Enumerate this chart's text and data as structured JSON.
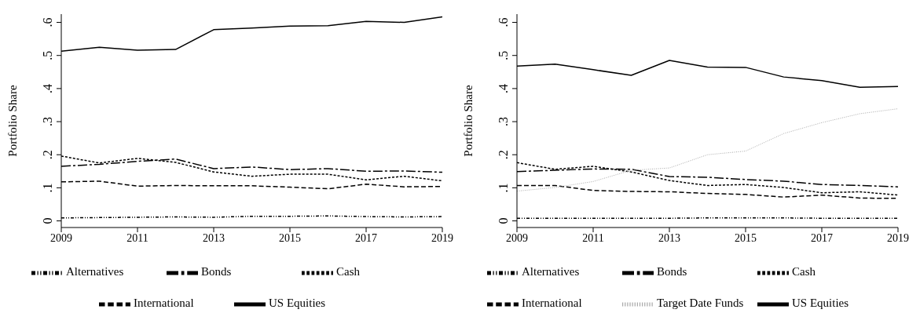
{
  "chart_data": [
    {
      "type": "line",
      "ylabel": "Portfolio Share",
      "x": [
        2009,
        2010,
        2011,
        2012,
        2013,
        2014,
        2015,
        2016,
        2017,
        2018,
        2019
      ],
      "xlim": [
        2009,
        2019
      ],
      "xticks": [
        2009,
        2011,
        2013,
        2015,
        2017,
        2019
      ],
      "ylim": [
        -0.02,
        0.625
      ],
      "yticks": [
        {
          "value": 0,
          "label": "0"
        },
        {
          "value": 0.1,
          "label": ".1"
        },
        {
          "value": 0.2,
          "label": ".2"
        },
        {
          "value": 0.3,
          "label": ".3"
        },
        {
          "value": 0.4,
          "label": ".4"
        },
        {
          "value": 0.5,
          "label": ".5"
        },
        {
          "value": 0.6,
          "label": ".6"
        }
      ],
      "legend": "bottom",
      "series": [
        {
          "name": "US Equities",
          "color": "#000000",
          "line_style": "solid",
          "values": [
            0.513,
            0.525,
            0.516,
            0.518,
            0.578,
            0.583,
            0.589,
            0.59,
            0.603,
            0.6,
            0.617
          ]
        },
        {
          "name": "Bonds",
          "color": "#000000",
          "line_style": "dashdot",
          "values": [
            0.165,
            0.171,
            0.18,
            0.187,
            0.158,
            0.163,
            0.155,
            0.158,
            0.15,
            0.151,
            0.147
          ]
        },
        {
          "name": "Cash",
          "color": "#000000",
          "line_style": "dotted",
          "values": [
            0.196,
            0.175,
            0.189,
            0.177,
            0.148,
            0.135,
            0.141,
            0.141,
            0.124,
            0.135,
            0.121
          ]
        },
        {
          "name": "International",
          "color": "#000000",
          "line_style": "dashed",
          "values": [
            0.118,
            0.12,
            0.105,
            0.107,
            0.106,
            0.106,
            0.102,
            0.097,
            0.111,
            0.103,
            0.104
          ]
        },
        {
          "name": "Alternatives",
          "color": "#000000",
          "line_style": "dashdotdot",
          "values": [
            0.009,
            0.01,
            0.011,
            0.012,
            0.011,
            0.014,
            0.014,
            0.015,
            0.013,
            0.012,
            0.013
          ]
        }
      ]
    },
    {
      "type": "line",
      "ylabel": "Portfolio Share",
      "x": [
        2009,
        2010,
        2011,
        2012,
        2013,
        2014,
        2015,
        2016,
        2017,
        2018,
        2019
      ],
      "xlim": [
        2009,
        2019
      ],
      "xticks": [
        2009,
        2011,
        2013,
        2015,
        2017,
        2019
      ],
      "ylim": [
        -0.02,
        0.625
      ],
      "yticks": [
        {
          "value": 0,
          "label": "0"
        },
        {
          "value": 0.1,
          "label": ".1"
        },
        {
          "value": 0.2,
          "label": ".2"
        },
        {
          "value": 0.3,
          "label": ".3"
        },
        {
          "value": 0.4,
          "label": ".4"
        },
        {
          "value": 0.5,
          "label": ".5"
        },
        {
          "value": 0.6,
          "label": ".6"
        }
      ],
      "legend": "bottom",
      "series": [
        {
          "name": "US Equities",
          "color": "#000000",
          "line_style": "solid",
          "values": [
            0.468,
            0.474,
            0.457,
            0.44,
            0.485,
            0.465,
            0.464,
            0.435,
            0.424,
            0.404,
            0.406
          ]
        },
        {
          "name": "Bonds",
          "color": "#000000",
          "line_style": "dashdot",
          "values": [
            0.149,
            0.153,
            0.157,
            0.156,
            0.134,
            0.132,
            0.125,
            0.12,
            0.11,
            0.107,
            0.103
          ]
        },
        {
          "name": "Cash",
          "color": "#000000",
          "line_style": "dotted",
          "values": [
            0.176,
            0.156,
            0.165,
            0.148,
            0.122,
            0.107,
            0.11,
            0.101,
            0.085,
            0.088,
            0.078
          ]
        },
        {
          "name": "International",
          "color": "#000000",
          "line_style": "dashed",
          "values": [
            0.107,
            0.107,
            0.092,
            0.089,
            0.088,
            0.083,
            0.08,
            0.072,
            0.078,
            0.069,
            0.068
          ]
        },
        {
          "name": "Alternatives",
          "color": "#000000",
          "line_style": "dashdotdot",
          "values": [
            0.008,
            0.008,
            0.008,
            0.008,
            0.008,
            0.009,
            0.009,
            0.009,
            0.008,
            0.008,
            0.008
          ]
        },
        {
          "name": "Target Date Funds",
          "color": "#aaaaaa",
          "line_style": "fine",
          "values": [
            0.09,
            0.101,
            0.119,
            0.153,
            0.16,
            0.2,
            0.211,
            0.264,
            0.297,
            0.324,
            0.339
          ]
        }
      ]
    }
  ]
}
